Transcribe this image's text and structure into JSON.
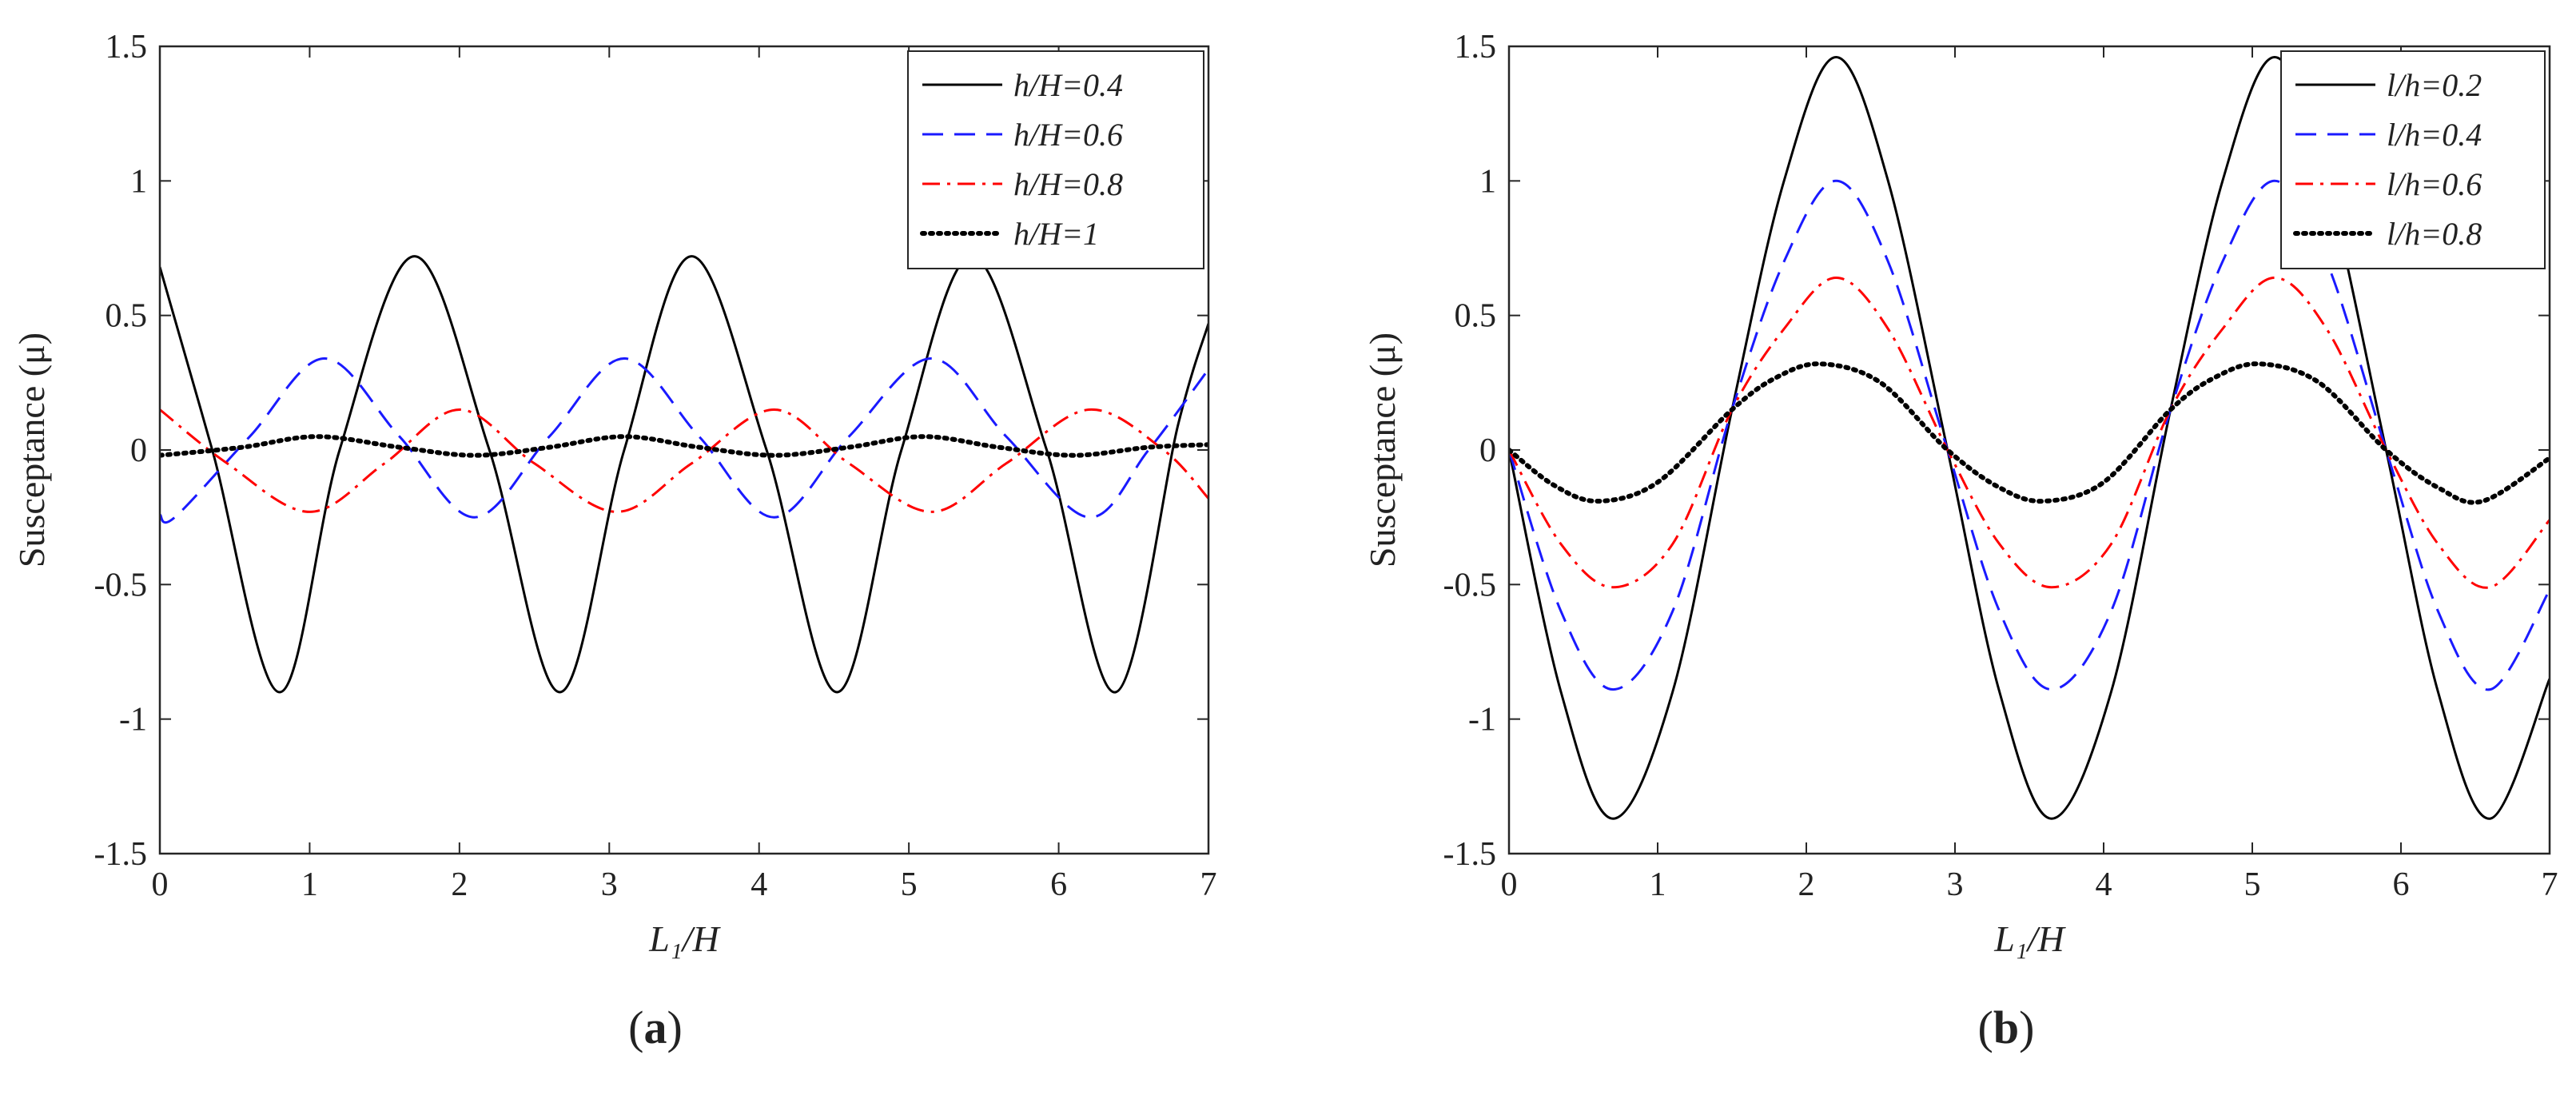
{
  "chart_data": [
    {
      "type": "line",
      "panel_id": "a",
      "caption_letter": "a",
      "xlabel": "L₁/H",
      "ylabel": "Susceptance (μ)",
      "xlim": [
        0,
        7
      ],
      "ylim": [
        -1.5,
        1.5
      ],
      "xticks": [
        0,
        1,
        2,
        3,
        4,
        5,
        6,
        7
      ],
      "yticks": [
        -1.5,
        -1,
        -0.5,
        0,
        0.5,
        1,
        1.5
      ],
      "ytick_labels": [
        "-1.5",
        "-1",
        "-0.5",
        "0",
        "0.5",
        "1",
        "1.5"
      ],
      "legend_location": "top-right",
      "series": [
        {
          "name": "h/H=0.4",
          "color": "#000000",
          "style": "solid",
          "x": [
            0,
            0.35,
            0.8,
            1.2,
            1.7,
            2.2,
            2.67,
            3.1,
            3.55,
            4.05,
            4.52,
            4.95,
            5.42,
            5.92,
            6.38,
            6.8,
            7.0
          ],
          "y": [
            0.68,
            0.0,
            -0.9,
            0.0,
            0.72,
            0.0,
            -0.9,
            0.0,
            0.72,
            0.0,
            -0.9,
            0.0,
            0.72,
            0.0,
            -0.9,
            0.1,
            0.47
          ]
        },
        {
          "name": "h/H=0.6",
          "color": "#1a1aff",
          "style": "dashed",
          "x": [
            0,
            0.1,
            0.6,
            1.1,
            1.6,
            2.1,
            2.6,
            3.1,
            3.6,
            4.1,
            4.6,
            5.15,
            5.65,
            6.2,
            6.6,
            7.0
          ],
          "y": [
            -0.24,
            -0.25,
            0.05,
            0.34,
            0.05,
            -0.25,
            0.05,
            0.34,
            0.05,
            -0.25,
            0.05,
            0.34,
            0.05,
            -0.25,
            0.0,
            0.3
          ],
          "smooth": true
        },
        {
          "name": "h/H=0.8",
          "color": "#ff0000",
          "style": "dashdot",
          "x": [
            0,
            0.45,
            1.0,
            1.5,
            2.0,
            2.5,
            3.05,
            3.55,
            4.1,
            4.6,
            5.15,
            5.65,
            6.2,
            6.7,
            7.0
          ],
          "y": [
            0.15,
            -0.05,
            -0.23,
            -0.05,
            0.15,
            -0.05,
            -0.23,
            -0.05,
            0.15,
            -0.05,
            -0.23,
            -0.05,
            0.15,
            0.0,
            -0.18
          ],
          "smooth": true
        },
        {
          "name": "h/H=1",
          "color": "#000000",
          "style": "dotted",
          "x": [
            0,
            0.55,
            1.05,
            1.6,
            2.1,
            2.6,
            3.1,
            3.6,
            4.1,
            4.6,
            5.1,
            5.6,
            6.1,
            6.6,
            7.0
          ],
          "y": [
            -0.02,
            0.01,
            0.05,
            0.01,
            -0.02,
            0.01,
            0.05,
            0.01,
            -0.02,
            0.01,
            0.05,
            0.01,
            -0.02,
            0.01,
            0.02
          ],
          "smooth": true
        }
      ]
    },
    {
      "type": "line",
      "panel_id": "b",
      "caption_letter": "b",
      "xlabel": "L₁/H",
      "ylabel": "Susceptance (μ)",
      "xlim": [
        0,
        7
      ],
      "ylim": [
        -1.5,
        1.5
      ],
      "xticks": [
        0,
        1,
        2,
        3,
        4,
        5,
        6,
        7
      ],
      "yticks": [
        -1.5,
        -1,
        -0.5,
        0,
        0.5,
        1,
        1.5
      ],
      "ytick_labels": [
        "-1.5",
        "-1",
        "-0.5",
        "0",
        "0.5",
        "1",
        "1.5"
      ],
      "legend_location": "top-right",
      "series": [
        {
          "name": "l/h=0.2",
          "color": "#000000",
          "style": "solid",
          "x": [
            0,
            0.35,
            0.7,
            1.1,
            1.5,
            1.85,
            2.2,
            2.55,
            2.95,
            3.3,
            3.65,
            4.05,
            4.45,
            4.8,
            5.15,
            5.5,
            5.9,
            6.25,
            6.6,
            7.0
          ],
          "y": [
            0.0,
            -0.9,
            -1.37,
            -0.9,
            0.15,
            1.0,
            1.46,
            1.0,
            0.0,
            -0.9,
            -1.37,
            -0.9,
            0.15,
            1.0,
            1.46,
            1.0,
            0.0,
            -0.9,
            -1.37,
            -0.85
          ]
        },
        {
          "name": "l/h=0.4",
          "color": "#1a1aff",
          "style": "dashed",
          "x": [
            0,
            0.35,
            0.7,
            1.1,
            1.5,
            1.85,
            2.2,
            2.55,
            2.95,
            3.3,
            3.65,
            4.05,
            4.45,
            4.8,
            5.15,
            5.5,
            5.9,
            6.25,
            6.6,
            7.0
          ],
          "y": [
            0.0,
            -0.6,
            -0.89,
            -0.6,
            0.15,
            0.7,
            1.0,
            0.7,
            0.0,
            -0.6,
            -0.89,
            -0.6,
            0.15,
            0.7,
            1.0,
            0.7,
            0.0,
            -0.6,
            -0.89,
            -0.52
          ]
        },
        {
          "name": "l/h=0.6",
          "color": "#ff0000",
          "style": "dashdot",
          "x": [
            0,
            0.35,
            0.7,
            1.1,
            1.5,
            1.85,
            2.2,
            2.55,
            2.95,
            3.3,
            3.65,
            4.05,
            4.45,
            4.8,
            5.15,
            5.5,
            5.9,
            6.25,
            6.6,
            7.0
          ],
          "y": [
            0.0,
            -0.35,
            -0.51,
            -0.35,
            0.15,
            0.45,
            0.64,
            0.45,
            0.0,
            -0.35,
            -0.51,
            -0.35,
            0.15,
            0.45,
            0.64,
            0.45,
            0.0,
            -0.35,
            -0.51,
            -0.26
          ]
        },
        {
          "name": "l/h=0.8",
          "color": "#000000",
          "style": "dotted",
          "x": [
            0,
            0.3,
            0.6,
            1.0,
            1.5,
            1.8,
            2.1,
            2.5,
            2.95,
            3.3,
            3.6,
            4.0,
            4.45,
            4.75,
            5.05,
            5.45,
            5.9,
            6.25,
            6.55,
            7.0
          ],
          "y": [
            0.0,
            -0.13,
            -0.19,
            -0.12,
            0.15,
            0.27,
            0.32,
            0.25,
            0.0,
            -0.14,
            -0.19,
            -0.12,
            0.15,
            0.27,
            0.32,
            0.25,
            0.0,
            -0.14,
            -0.19,
            -0.03
          ]
        }
      ]
    }
  ]
}
